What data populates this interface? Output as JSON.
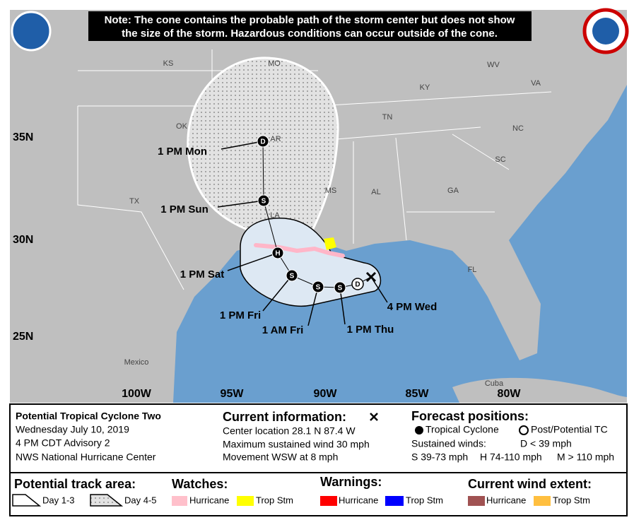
{
  "note": [
    "Note: The cone contains the probable path of the storm center but does not show",
    "the size of the storm. Hazardous conditions can occur outside of the cone."
  ],
  "map": {
    "region_labels": [
      "KS",
      "MO",
      "WV",
      "KY",
      "VA",
      "OK",
      "AR",
      "TN",
      "NC",
      "SC",
      "TX",
      "MS",
      "AL",
      "GA",
      "LA",
      "FL",
      "Mexico",
      "Cuba"
    ],
    "latitude_labels": [
      "35N",
      "30N",
      "25N"
    ],
    "longitude_labels": [
      "100W",
      "95W",
      "90W",
      "85W",
      "80W"
    ],
    "forecast_points": [
      {
        "symbol": "D",
        "time": "1 PM Mon"
      },
      {
        "symbol": "S",
        "time": "1 PM Sun"
      },
      {
        "symbol": "H",
        "time": "1 PM Sat"
      },
      {
        "symbol": "S",
        "time": "1 PM Fri"
      },
      {
        "symbol": "S",
        "time": "1 AM Fri"
      },
      {
        "symbol": "S",
        "time": "1 PM Thu"
      },
      {
        "symbol": "D"
      }
    ],
    "current_position_label": "4 PM Wed"
  },
  "storm_info": {
    "name": "Potential Tropical Cyclone Two",
    "date": "Wednesday July 10, 2019",
    "advisory": "4 PM CDT Advisory 2",
    "source": "NWS National Hurricane Center"
  },
  "current_information": {
    "title": "Current information:",
    "lines": [
      "Center location 28.1 N 87.4 W",
      "Maximum sustained wind 30 mph",
      "Movement WSW at 8 mph"
    ]
  },
  "forecast_positions": {
    "title": "Forecast positions:",
    "tropical_cyclone": "Tropical Cyclone",
    "post_potential": "Post/Potential TC",
    "sustained_winds": "Sustained winds:",
    "d": "D < 39 mph",
    "s": "S 39-73 mph",
    "h": "H 74-110 mph",
    "m": "M > 110 mph"
  },
  "legend": {
    "track_area": {
      "title": "Potential track area:",
      "day13": "Day 1-3",
      "day45": "Day 4-5"
    },
    "watches": {
      "title": "Watches:",
      "hurricane": "Hurricane",
      "trop_stm": "Trop Stm"
    },
    "warnings": {
      "title": "Warnings:",
      "hurricane": "Hurricane",
      "trop_stm": "Trop Stm"
    },
    "wind_extent": {
      "title": "Current wind extent:",
      "hurricane": "Hurricane",
      "trop_stm": "Trop Stm"
    }
  }
}
